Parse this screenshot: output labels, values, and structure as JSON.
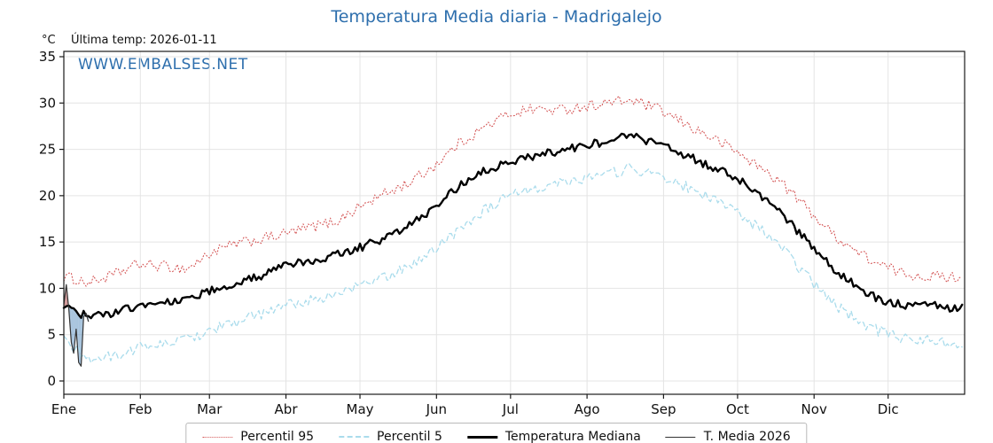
{
  "chart_data": {
    "type": "line",
    "title": "Temperatura Media diaria - Madrigalejo",
    "unit": "°C",
    "annotation": "Última temp: 2026-01-11",
    "watermark": "WWW.EMBALSES.NET",
    "ylim": [
      0,
      35
    ],
    "yticks": [
      0,
      5,
      10,
      15,
      20,
      25,
      30,
      35
    ],
    "days_total": 365,
    "months": {
      "labels": [
        "Ene",
        "Feb",
        "Mar",
        "Abr",
        "May",
        "Jun",
        "Jul",
        "Ago",
        "Sep",
        "Oct",
        "Nov",
        "Dic"
      ],
      "start_days": [
        0,
        31,
        59,
        90,
        120,
        151,
        181,
        212,
        243,
        273,
        304,
        334
      ]
    },
    "control_days": [
      0,
      10,
      20,
      30,
      40,
      50,
      60,
      70,
      80,
      90,
      100,
      110,
      120,
      130,
      140,
      150,
      160,
      170,
      180,
      190,
      200,
      210,
      220,
      230,
      240,
      250,
      260,
      270,
      280,
      290,
      300,
      310,
      320,
      330,
      340,
      350,
      360
    ],
    "series": [
      {
        "name": "Percentil 95",
        "color": "#d45555",
        "style": "dotted",
        "width": 1.1,
        "noise": 0.6,
        "values": [
          11.3,
          10.6,
          11.4,
          12.6,
          12.4,
          12.1,
          13.9,
          14.8,
          15.3,
          15.9,
          16.6,
          17.2,
          18.8,
          20.2,
          21.4,
          23.2,
          25.6,
          27.3,
          28.8,
          29.4,
          29.2,
          29.6,
          30.0,
          30.3,
          29.4,
          28.0,
          26.6,
          25.2,
          23.4,
          21.6,
          19.0,
          16.2,
          14.2,
          12.6,
          11.6,
          11.3,
          11.2
        ]
      },
      {
        "name": "Percentil 5",
        "color": "#aadcec",
        "style": "dashed",
        "width": 1.3,
        "noise": 0.6,
        "values": [
          4.3,
          2.4,
          2.6,
          3.6,
          4.0,
          4.5,
          5.6,
          6.4,
          7.2,
          8.2,
          8.7,
          9.3,
          10.3,
          11.2,
          12.4,
          14.2,
          16.4,
          18.4,
          19.8,
          20.8,
          21.4,
          21.9,
          22.3,
          23.0,
          22.2,
          21.2,
          20.0,
          18.6,
          16.8,
          14.6,
          11.6,
          8.8,
          6.8,
          5.4,
          4.6,
          4.4,
          4.0
        ]
      },
      {
        "name": "Temperatura Mediana",
        "color": "#000000",
        "style": "solid",
        "width": 2.4,
        "noise": 0.45,
        "values": [
          8.0,
          6.9,
          7.3,
          8.1,
          8.5,
          8.9,
          9.8,
          10.6,
          11.3,
          12.4,
          13.0,
          13.6,
          14.4,
          15.4,
          16.8,
          18.6,
          21.0,
          22.6,
          23.6,
          24.2,
          24.8,
          25.4,
          25.8,
          26.6,
          25.6,
          24.6,
          23.4,
          22.2,
          20.6,
          18.4,
          15.4,
          12.6,
          10.4,
          8.8,
          8.2,
          8.4,
          7.8
        ]
      }
    ],
    "current_year_series": {
      "name": "T. Media 2026",
      "color": "#333333",
      "width": 1.2,
      "days": [
        0,
        1,
        2,
        3,
        4,
        5,
        6,
        7,
        8,
        9,
        10
      ],
      "values": [
        8.3,
        10.4,
        7.8,
        4.2,
        3.0,
        5.6,
        2.0,
        1.6,
        6.9,
        7.3,
        6.4
      ],
      "fill_above_color": "#b35555",
      "fill_below_color": "#6f9fc8"
    }
  },
  "legend": {
    "items": [
      {
        "label": "Percentil 95"
      },
      {
        "label": "Percentil 5"
      },
      {
        "label": "Temperatura Mediana"
      },
      {
        "label": "T. Media 2026"
      }
    ]
  }
}
